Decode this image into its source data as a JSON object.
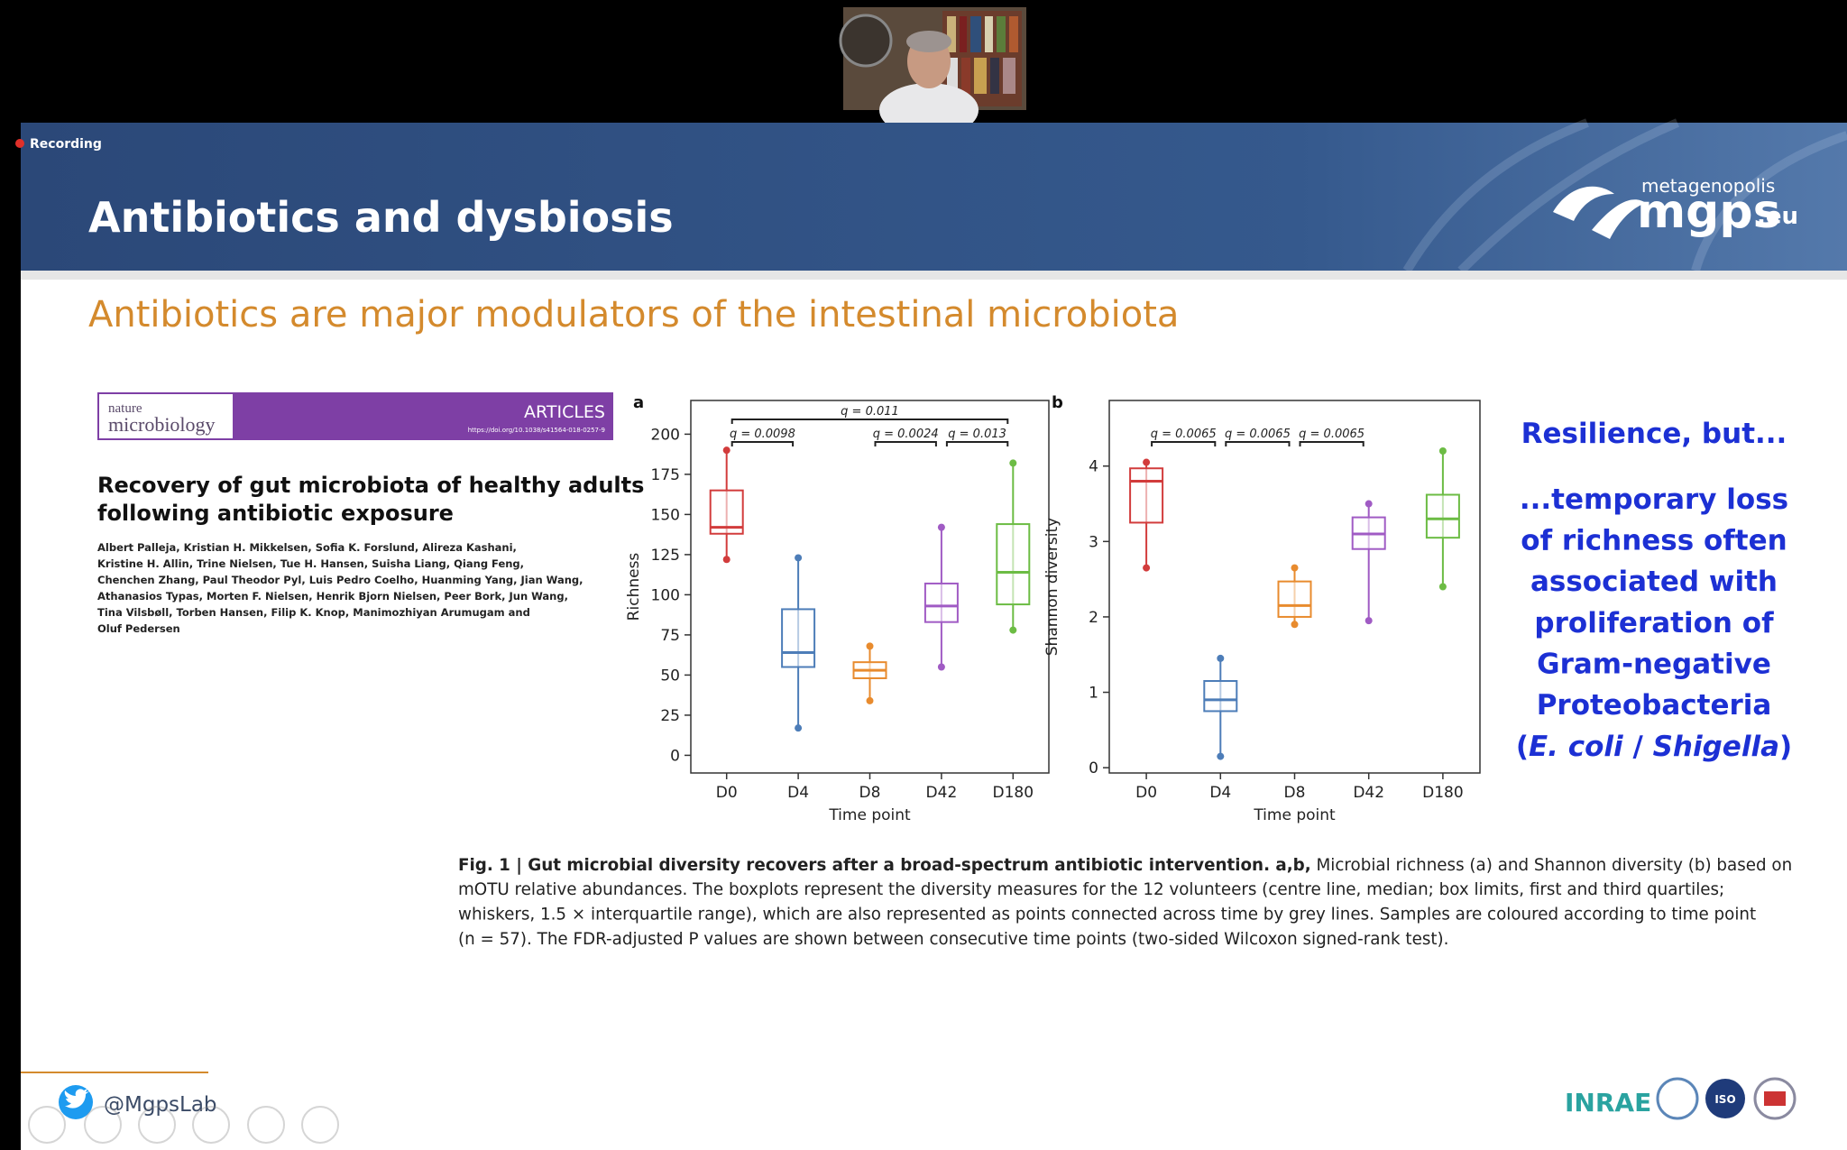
{
  "meeting": {
    "recording": "Recording"
  },
  "slide": {
    "title": "Antibiotics and dysbiosis",
    "logo": {
      "top": "metagenopolis",
      "main": "mgps",
      "suffix": ".eu"
    },
    "subtitle": "Antibiotics are major modulators of the intestinal microbiota",
    "paper": {
      "journal_top": "nature",
      "journal_bottom": "microbiology",
      "section": "ARTICLES",
      "doi": "https://doi.org/10.1038/s41564-018-0257-9",
      "title_lines": [
        "Recovery of gut microbiota of healthy adults",
        "following antibiotic exposure"
      ],
      "author_lines": [
        "Albert Palleja, Kristian H. Mikkelsen, Sofia K. Forslund, Alireza Kashani,",
        "Kristine H. Allin, Trine Nielsen, Tue H. Hansen, Suisha Liang, Qiang Feng,",
        "Chenchen Zhang, Paul Theodor Pyl, Luis Pedro Coelho, Huanming Yang, Jian Wang,",
        "Athanasios Typas, Morten F. Nielsen, Henrik Bjorn Nielsen, Peer Bork, Jun Wang,",
        "Tina Vilsbøll, Torben Hansen, Filip K. Knop, Manimozhiyan Arumugam and",
        "Oluf Pedersen"
      ]
    },
    "charts": [
      {
        "type": "box",
        "label": "a",
        "y_label": "Richness",
        "x_label": "Time point",
        "categories": [
          "D0",
          "D4",
          "D8",
          "D42",
          "D180"
        ],
        "colors": [
          "#d23c3c",
          "#4d7db8",
          "#e88b2e",
          "#a05bc4",
          "#6cbc44"
        ],
        "boxes": [
          {
            "min": 122,
            "q1": 138,
            "median": 142,
            "q3": 165,
            "max": 190
          },
          {
            "min": 17,
            "q1": 55,
            "median": 64,
            "q3": 91,
            "max": 123
          },
          {
            "min": 34,
            "q1": 48,
            "median": 53,
            "q3": 58,
            "max": 68
          },
          {
            "min": 55,
            "q1": 83,
            "median": 93,
            "q3": 107,
            "max": 142
          },
          {
            "min": 78,
            "q1": 94,
            "median": 114,
            "q3": 144,
            "max": 182
          }
        ],
        "ylim": [
          -11,
          221
        ],
        "yticks": [
          0,
          25,
          50,
          75,
          100,
          125,
          150,
          175,
          200
        ],
        "annotations": [
          {
            "text": "q = 0.011",
            "between": [
              "D0",
              "D180"
            ],
            "level": 2
          },
          {
            "text": "q = 0.0098",
            "between": [
              "D0",
              "D4"
            ],
            "level": 1
          },
          {
            "text": "q = 0.0024",
            "between": [
              "D8",
              "D42"
            ],
            "level": 1
          },
          {
            "text": "q = 0.013",
            "between": [
              "D42",
              "D180"
            ],
            "level": 1
          }
        ]
      },
      {
        "type": "box",
        "label": "b",
        "y_label": "Shannon diversity",
        "x_label": "Time point",
        "categories": [
          "D0",
          "D4",
          "D8",
          "D42",
          "D180"
        ],
        "colors": [
          "#d23c3c",
          "#4d7db8",
          "#e88b2e",
          "#a05bc4",
          "#6cbc44"
        ],
        "boxes": [
          {
            "min": 2.65,
            "q1": 3.25,
            "median": 3.8,
            "q3": 3.97,
            "max": 4.05
          },
          {
            "min": 0.15,
            "q1": 0.75,
            "median": 0.9,
            "q3": 1.15,
            "max": 1.45
          },
          {
            "min": 1.9,
            "q1": 2.0,
            "median": 2.15,
            "q3": 2.47,
            "max": 2.65
          },
          {
            "min": 1.95,
            "q1": 2.9,
            "median": 3.1,
            "q3": 3.32,
            "max": 3.5
          },
          {
            "min": 2.4,
            "q1": 3.05,
            "median": 3.3,
            "q3": 3.62,
            "max": 4.2
          }
        ],
        "ylim": [
          -0.07,
          4.87
        ],
        "yticks": [
          0,
          1,
          2,
          3,
          4
        ],
        "annotations": [
          {
            "text": "q = 0.0065",
            "between": [
              "D0",
              "D4"
            ],
            "level": 1
          },
          {
            "text": "q = 0.0065",
            "between": [
              "D4",
              "D8"
            ],
            "level": 1
          },
          {
            "text": "q = 0.0065",
            "between": [
              "D8",
              "D42"
            ],
            "level": 1
          }
        ]
      }
    ],
    "callout": {
      "heading": "Resilience, but...",
      "lines": [
        "...temporary loss",
        "of richness often",
        "associated with",
        "proliferation of",
        "Gram-negative",
        "Proteobacteria"
      ],
      "last_line": [
        "(",
        "E. coli",
        " / ",
        "Shigella",
        ")"
      ]
    },
    "caption": {
      "bold": "Fig. 1 | Gut microbial diversity recovers after a broad-spectrum antibiotic intervention. a,b,",
      "first_rest": " Microbial richness (a) and Shannon diversity (b) based on",
      "lines": [
        "mOTU relative abundances. The boxplots represent the diversity measures for the 12 volunteers (centre line, median; box limits, first and third quartiles;",
        "whiskers, 1.5 × interquartile range), which are also represented as points connected across time by grey lines. Samples are coloured according to time point",
        "(n = 57). The FDR-adjusted P values are shown between consecutive time points (two-sided Wilcoxon signed-rank test)."
      ]
    },
    "footer": {
      "twitter": "@MgpsLab",
      "inrae": "INRAE",
      "iso": "ISO"
    }
  }
}
